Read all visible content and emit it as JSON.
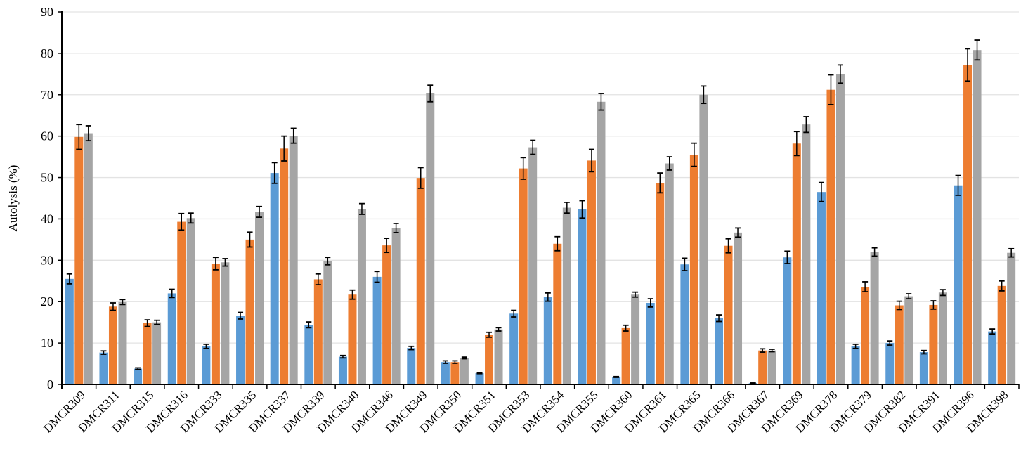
{
  "chart_data": {
    "type": "bar",
    "title": "",
    "xlabel": "",
    "ylabel": "Autolysis (%)",
    "ylim": [
      0,
      90
    ],
    "yticks": [
      0,
      10,
      20,
      30,
      40,
      50,
      60,
      70,
      80,
      90
    ],
    "grid": true,
    "legend": "none",
    "categories": [
      "DMCR309",
      "DMCR311",
      "DMCR315",
      "DMCR316",
      "DMCR333",
      "DMCR335",
      "DMCR337",
      "DMCR339",
      "DMCR340",
      "DMCR346",
      "DMCR349",
      "DMCR350",
      "DMCR351",
      "DMCR353",
      "DMCR354",
      "DMCR355",
      "DMCR360",
      "DMCR361",
      "DMCR365",
      "DMCR366",
      "DMCR367",
      "DMCR369",
      "DMCR378",
      "DMCR379",
      "DMCR382",
      "DMCR391",
      "DMCR396",
      "DMCR398"
    ],
    "series": [
      {
        "color": "#5b9bd5",
        "values": [
          25.5,
          7.7,
          3.8,
          22.0,
          9.2,
          16.6,
          51.1,
          14.4,
          6.7,
          26.0,
          8.8,
          5.4,
          2.7,
          17.1,
          21.1,
          42.3,
          1.8,
          19.7,
          29.0,
          16.0,
          0.3,
          30.7,
          46.5,
          9.2,
          10.0,
          7.8,
          48.1,
          12.8
        ],
        "errors": [
          1.2,
          0.4,
          0.2,
          1.0,
          0.5,
          0.8,
          2.5,
          0.7,
          0.3,
          1.3,
          0.4,
          0.3,
          0.1,
          0.8,
          1.0,
          2.1,
          0.1,
          1.0,
          1.5,
          0.8,
          0.05,
          1.5,
          2.3,
          0.5,
          0.5,
          0.4,
          2.4,
          0.6
        ]
      },
      {
        "color": "#ed7d31",
        "values": [
          59.8,
          18.8,
          14.8,
          39.3,
          29.2,
          35.0,
          57.0,
          25.4,
          21.7,
          33.6,
          49.9,
          5.4,
          12.0,
          52.2,
          34.0,
          54.1,
          13.6,
          48.7,
          55.5,
          33.5,
          8.2,
          58.2,
          71.2,
          23.6,
          19.1,
          19.2,
          77.2,
          23.8
        ],
        "errors": [
          3.0,
          0.9,
          0.8,
          2.0,
          1.5,
          1.8,
          3.0,
          1.3,
          1.1,
          1.7,
          2.5,
          0.3,
          0.6,
          2.6,
          1.7,
          2.7,
          0.7,
          2.4,
          2.8,
          1.7,
          0.4,
          2.9,
          3.6,
          1.2,
          1.0,
          1.0,
          3.9,
          1.2
        ]
      },
      {
        "color": "#a5a5a5",
        "values": [
          60.7,
          19.9,
          15.0,
          40.2,
          29.5,
          41.7,
          60.1,
          29.8,
          42.4,
          37.8,
          70.3,
          6.4,
          13.3,
          57.3,
          42.7,
          68.3,
          21.7,
          53.4,
          70.0,
          36.7,
          8.2,
          62.8,
          75.0,
          32.0,
          21.3,
          22.2,
          80.8,
          31.8
        ],
        "errors": [
          1.8,
          0.6,
          0.5,
          1.2,
          0.9,
          1.3,
          1.8,
          0.9,
          1.3,
          1.1,
          2.0,
          0.2,
          0.4,
          1.7,
          1.3,
          2.0,
          0.6,
          1.6,
          2.1,
          1.1,
          0.3,
          1.9,
          2.2,
          1.0,
          0.6,
          0.7,
          2.4,
          1.0
        ]
      }
    ]
  }
}
